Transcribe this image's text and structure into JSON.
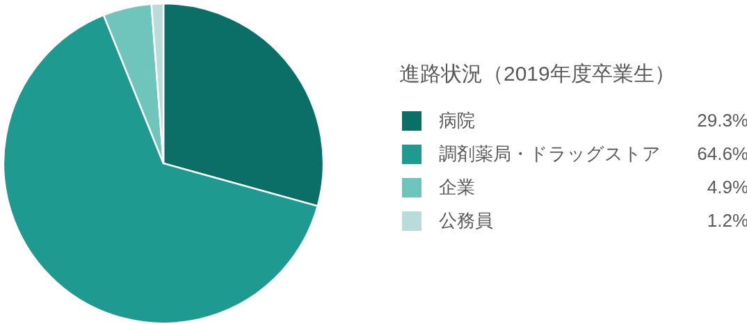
{
  "chart_data": {
    "type": "pie",
    "title": "進路状況（2019年度卒業生）",
    "categories": [
      "病院",
      "調剤薬局・ドラッグストア",
      "企業",
      "公務員"
    ],
    "values": [
      29.3,
      64.6,
      4.9,
      1.2
    ],
    "colors": [
      "#0b6f67",
      "#1f9a90",
      "#6fc4bc",
      "#b9dbda"
    ],
    "value_labels": [
      "29.3%",
      "64.6%",
      "4.9%",
      "1.2%"
    ],
    "legend": "right"
  }
}
